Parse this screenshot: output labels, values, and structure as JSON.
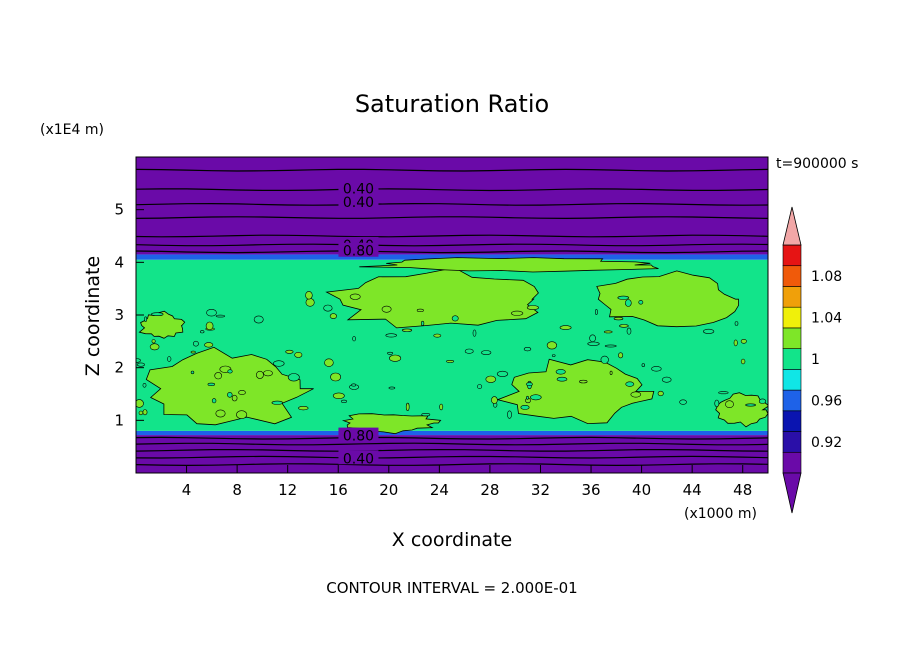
{
  "chart_data": {
    "type": "contour",
    "title": "Saturation Ratio",
    "xlabel": "X coordinate",
    "ylabel": "Z coordinate",
    "x_units": "(x1000 m)",
    "y_units": "(x1E4 m)",
    "time_label": "t=900000 s",
    "footer": "CONTOUR INTERVAL = 2.000E-01",
    "xlim": [
      0,
      50
    ],
    "ylim": [
      0,
      6
    ],
    "x_ticks": [
      4,
      8,
      12,
      16,
      20,
      24,
      28,
      32,
      36,
      40,
      44,
      48
    ],
    "y_ticks": [
      1,
      2,
      3,
      4,
      5
    ],
    "contour_labels": [
      {
        "x": 17.6,
        "z": 5.4,
        "text": "0.40"
      },
      {
        "x": 17.6,
        "z": 5.15,
        "text": "0.40"
      },
      {
        "x": 17.6,
        "z": 4.33,
        "text": "0.40"
      },
      {
        "x": 17.6,
        "z": 4.22,
        "text": "0.80"
      },
      {
        "x": 17.6,
        "z": 0.71,
        "text": "0.80"
      },
      {
        "x": 17.6,
        "z": 0.28,
        "text": "0.40"
      }
    ],
    "bands": [
      {
        "z0": 0.0,
        "z1": 0.72,
        "color": "#6a0aa8"
      },
      {
        "z0": 0.72,
        "z1": 0.8,
        "color": "#1e62e8"
      },
      {
        "z0": 0.8,
        "z1": 4.05,
        "color": "#12e48a"
      },
      {
        "z0": 4.05,
        "z1": 4.15,
        "color": "#1e62e8"
      },
      {
        "z0": 4.15,
        "z1": 6.0,
        "color": "#6a0aa8"
      }
    ],
    "patches": [
      {
        "x": 7,
        "z": 1.6,
        "rx": 6.5,
        "rz": 0.75,
        "color": "#7ee628"
      },
      {
        "x": 24,
        "z": 3.3,
        "rx": 9,
        "rz": 0.55,
        "color": "#7ee628"
      },
      {
        "x": 42,
        "z": 3.3,
        "rx": 6,
        "rz": 0.5,
        "color": "#7ee628"
      },
      {
        "x": 35,
        "z": 1.55,
        "rx": 6,
        "rz": 0.6,
        "color": "#7ee628"
      },
      {
        "x": 20,
        "z": 0.95,
        "rx": 4,
        "rz": 0.2,
        "color": "#7ee628"
      },
      {
        "x": 30,
        "z": 3.95,
        "rx": 12,
        "rz": 0.14,
        "color": "#7ee628"
      },
      {
        "x": 48,
        "z": 1.2,
        "rx": 2,
        "rz": 0.3,
        "color": "#7ee628"
      },
      {
        "x": 2,
        "z": 2.8,
        "rx": 1.8,
        "rz": 0.25,
        "color": "#7ee628"
      }
    ],
    "h_contours_z": [
      0.16,
      0.3,
      0.43,
      0.55,
      0.66,
      4.2,
      4.33,
      4.5,
      4.85,
      5.1,
      5.38,
      5.75
    ],
    "colorbar": {
      "ticks": [
        "1.08",
        "1.04",
        "1",
        "0.96",
        "0.92"
      ],
      "colors": [
        "#6a0aa8",
        "#2a0fa8",
        "#0a14b0",
        "#1e62e8",
        "#10e6e6",
        "#12e48a",
        "#7ee628",
        "#f0f00a",
        "#f0a00a",
        "#f05a0a",
        "#e61414"
      ],
      "top_triangle_color": "#f2a7a7",
      "bottom_triangle_color": "#6a0aa8"
    }
  }
}
